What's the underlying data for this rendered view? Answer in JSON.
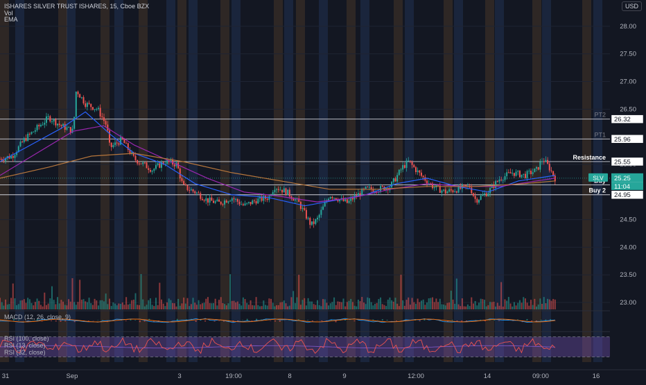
{
  "header": {
    "title": "ISHARES SILVER TRUST ISHARES, 15, Cboe BZX",
    "line2": "Vol",
    "line3": "EMA",
    "currency": "USD"
  },
  "indicators": {
    "macd": "MACD (12, 26, close, 9)",
    "rsi1": "RSI (100, close)",
    "rsi2": "RSI (13, close)",
    "rsi3": "RSI (32, close)"
  },
  "chart_data": {
    "type": "candlestick",
    "symbol": "SLV",
    "interval": "15",
    "yticks": [
      28.0,
      27.5,
      27.0,
      26.5,
      25.5,
      24.5,
      24.0,
      23.5,
      23.0
    ],
    "xticks": [
      "31",
      "Sep",
      "3",
      "19:00",
      "8",
      "9",
      "12:00",
      "14",
      "09:00",
      "16"
    ],
    "ylim": [
      22.95,
      28.35
    ],
    "current_price": 25.25,
    "countdown": "11:04",
    "levels": [
      {
        "label": "PT2",
        "price": 26.32
      },
      {
        "label": "PT1",
        "price": 25.96
      },
      {
        "label": "Resistance",
        "price": 25.55
      },
      {
        "label": "Buy",
        "price": 25.13
      },
      {
        "label": "Buy 2",
        "price": 24.95
      }
    ],
    "close_path": [
      [
        0,
        25.6
      ],
      [
        0.02,
        25.65
      ],
      [
        0.04,
        25.95
      ],
      [
        0.06,
        26.15
      ],
      [
        0.08,
        26.35
      ],
      [
        0.1,
        26.2
      ],
      [
        0.12,
        26.1
      ],
      [
        0.125,
        26.85
      ],
      [
        0.14,
        26.6
      ],
      [
        0.16,
        26.5
      ],
      [
        0.175,
        26.2
      ],
      [
        0.18,
        25.8
      ],
      [
        0.2,
        25.95
      ],
      [
        0.22,
        25.6
      ],
      [
        0.25,
        25.4
      ],
      [
        0.27,
        25.55
      ],
      [
        0.29,
        25.5
      ],
      [
        0.3,
        25.1
      ],
      [
        0.32,
        25.0
      ],
      [
        0.34,
        24.85
      ],
      [
        0.36,
        24.8
      ],
      [
        0.38,
        24.9
      ],
      [
        0.4,
        24.75
      ],
      [
        0.42,
        24.85
      ],
      [
        0.44,
        24.9
      ],
      [
        0.45,
        25.1
      ],
      [
        0.47,
        25.0
      ],
      [
        0.49,
        24.8
      ],
      [
        0.5,
        24.6
      ],
      [
        0.51,
        24.4
      ],
      [
        0.52,
        24.5
      ],
      [
        0.54,
        24.95
      ],
      [
        0.56,
        24.85
      ],
      [
        0.57,
        24.8
      ],
      [
        0.58,
        24.9
      ],
      [
        0.6,
        25.05
      ],
      [
        0.62,
        25.05
      ],
      [
        0.64,
        25.1
      ],
      [
        0.66,
        25.45
      ],
      [
        0.67,
        25.55
      ],
      [
        0.69,
        25.3
      ],
      [
        0.71,
        25.1
      ],
      [
        0.73,
        25.0
      ],
      [
        0.75,
        25.05
      ],
      [
        0.77,
        25.1
      ],
      [
        0.78,
        24.85
      ],
      [
        0.8,
        25.0
      ],
      [
        0.82,
        25.25
      ],
      [
        0.84,
        25.35
      ],
      [
        0.86,
        25.3
      ],
      [
        0.88,
        25.4
      ],
      [
        0.89,
        25.6
      ],
      [
        0.9,
        25.45
      ],
      [
        0.91,
        25.25
      ]
    ],
    "ema_fast": [
      [
        0,
        25.55
      ],
      [
        0.05,
        25.85
      ],
      [
        0.1,
        26.15
      ],
      [
        0.14,
        26.45
      ],
      [
        0.18,
        26.05
      ],
      [
        0.22,
        25.7
      ],
      [
        0.27,
        25.5
      ],
      [
        0.32,
        25.15
      ],
      [
        0.38,
        24.95
      ],
      [
        0.44,
        24.9
      ],
      [
        0.5,
        24.75
      ],
      [
        0.55,
        24.85
      ],
      [
        0.6,
        24.95
      ],
      [
        0.65,
        25.15
      ],
      [
        0.7,
        25.25
      ],
      [
        0.75,
        25.1
      ],
      [
        0.8,
        25.0
      ],
      [
        0.85,
        25.2
      ],
      [
        0.91,
        25.3
      ]
    ],
    "ema_mid": [
      [
        0,
        25.3
      ],
      [
        0.06,
        25.7
      ],
      [
        0.12,
        26.1
      ],
      [
        0.17,
        26.2
      ],
      [
        0.22,
        25.85
      ],
      [
        0.28,
        25.55
      ],
      [
        0.34,
        25.25
      ],
      [
        0.4,
        25.0
      ],
      [
        0.46,
        24.92
      ],
      [
        0.52,
        24.82
      ],
      [
        0.58,
        24.9
      ],
      [
        0.64,
        25.05
      ],
      [
        0.7,
        25.15
      ],
      [
        0.76,
        25.1
      ],
      [
        0.82,
        25.1
      ],
      [
        0.88,
        25.2
      ],
      [
        0.91,
        25.25
      ]
    ],
    "ema_slow": [
      [
        0,
        25.25
      ],
      [
        0.08,
        25.45
      ],
      [
        0.15,
        25.65
      ],
      [
        0.22,
        25.7
      ],
      [
        0.3,
        25.55
      ],
      [
        0.38,
        25.35
      ],
      [
        0.46,
        25.2
      ],
      [
        0.54,
        25.05
      ],
      [
        0.62,
        25.05
      ],
      [
        0.7,
        25.1
      ],
      [
        0.78,
        25.1
      ],
      [
        0.86,
        25.15
      ],
      [
        0.91,
        25.2
      ]
    ],
    "macd_yticks": [
      0.0
    ],
    "rsi_yticks": [
      75.0,
      50.0,
      25.0
    ],
    "rsi_band": [
      30,
      70
    ]
  }
}
